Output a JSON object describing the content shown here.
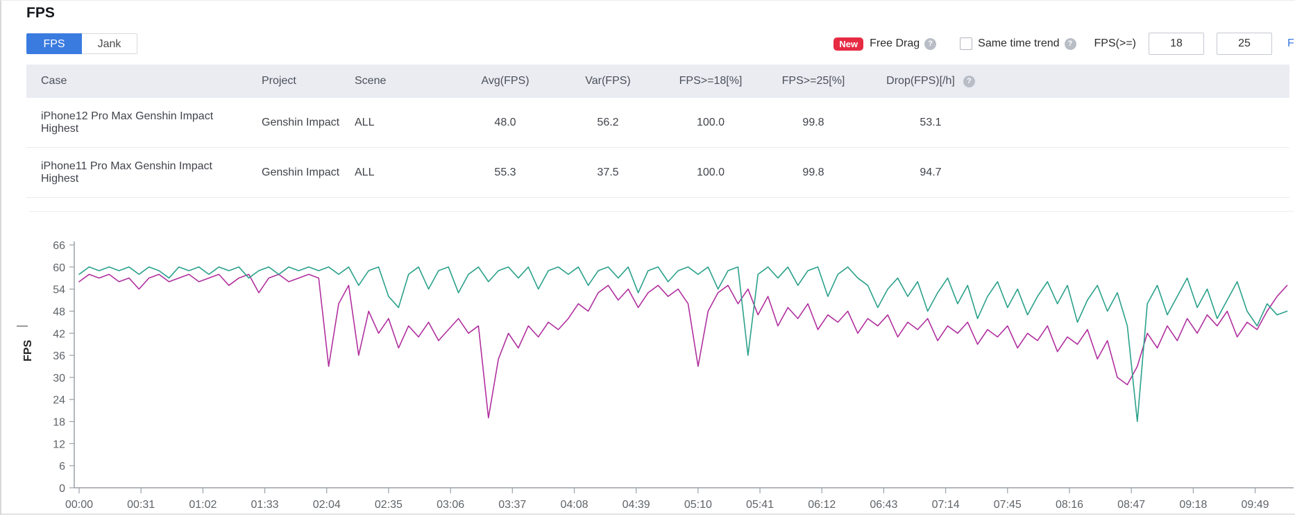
{
  "page": {
    "title": "FPS"
  },
  "tabs": [
    {
      "label": "FPS",
      "active": true
    },
    {
      "label": "Jank",
      "active": false
    }
  ],
  "controls": {
    "new_badge": "New",
    "free_drag_label": "Free Drag",
    "same_time_trend_label": "Same time trend",
    "same_time_trend_checked": false,
    "fps_threshold_label": "FPS(>=)",
    "fps_input_1": "18",
    "fps_input_2": "25",
    "cut_link_text": "F",
    "help_glyph": "?"
  },
  "table": {
    "columns": [
      "Case",
      "Project",
      "Scene",
      "Avg(FPS)",
      "Var(FPS)",
      "FPS>=18[%]",
      "FPS>=25[%]",
      "Drop(FPS)[/h]"
    ],
    "rows": [
      [
        "iPhone12 Pro Max Genshin Impact Highest",
        "Genshin Impact",
        "ALL",
        "48.0",
        "56.2",
        "100.0",
        "99.8",
        "53.1"
      ],
      [
        "iPhone11 Pro Max Genshin Impact Highest",
        "Genshin Impact",
        "ALL",
        "55.3",
        "37.5",
        "100.0",
        "99.8",
        "94.7"
      ]
    ]
  },
  "colors": {
    "accent_blue": "#3a7be0",
    "badge_red": "#e62b43",
    "header_bg": "#eaecf2",
    "series_iphone12": "#b02f9e",
    "series_iphone11": "#2aa08a"
  },
  "chart_data": {
    "type": "line",
    "title": "",
    "xlabel": "",
    "ylabel": "FPS",
    "ylim": [
      0,
      66
    ],
    "yticks": [
      0,
      6,
      12,
      18,
      24,
      30,
      36,
      42,
      48,
      54,
      60,
      66
    ],
    "xticklabels": [
      "00:00",
      "00:31",
      "01:02",
      "01:33",
      "02:04",
      "02:35",
      "03:06",
      "03:37",
      "04:08",
      "04:39",
      "05:10",
      "05:41",
      "06:12",
      "06:43",
      "07:14",
      "07:45",
      "08:16",
      "08:47",
      "09:18",
      "09:49"
    ],
    "x_interval_seconds": 31,
    "grid": false,
    "legend_position": "none",
    "series": [
      {
        "name": "iPhone12 Pro Max Genshin Impact Highest",
        "color": "#b02f9e",
        "points": [
          [
            0,
            56
          ],
          [
            5,
            58
          ],
          [
            10,
            57
          ],
          [
            15,
            58
          ],
          [
            20,
            56
          ],
          [
            25,
            57
          ],
          [
            30,
            54
          ],
          [
            35,
            57
          ],
          [
            40,
            58
          ],
          [
            45,
            56
          ],
          [
            50,
            57
          ],
          [
            55,
            58
          ],
          [
            60,
            56
          ],
          [
            65,
            57
          ],
          [
            70,
            58
          ],
          [
            75,
            55
          ],
          [
            80,
            57
          ],
          [
            85,
            58
          ],
          [
            90,
            53
          ],
          [
            95,
            57
          ],
          [
            100,
            58
          ],
          [
            105,
            56
          ],
          [
            110,
            57
          ],
          [
            115,
            58
          ],
          [
            120,
            57
          ],
          [
            125,
            33
          ],
          [
            130,
            50
          ],
          [
            135,
            55
          ],
          [
            140,
            36
          ],
          [
            145,
            48
          ],
          [
            150,
            42
          ],
          [
            155,
            46
          ],
          [
            160,
            38
          ],
          [
            165,
            44
          ],
          [
            170,
            41
          ],
          [
            175,
            45
          ],
          [
            180,
            40
          ],
          [
            185,
            43
          ],
          [
            190,
            46
          ],
          [
            195,
            42
          ],
          [
            200,
            44
          ],
          [
            205,
            19
          ],
          [
            210,
            35
          ],
          [
            215,
            42
          ],
          [
            220,
            38
          ],
          [
            225,
            44
          ],
          [
            230,
            41
          ],
          [
            235,
            45
          ],
          [
            240,
            43
          ],
          [
            245,
            46
          ],
          [
            250,
            50
          ],
          [
            255,
            48
          ],
          [
            260,
            53
          ],
          [
            265,
            55
          ],
          [
            270,
            51
          ],
          [
            275,
            54
          ],
          [
            280,
            49
          ],
          [
            285,
            53
          ],
          [
            290,
            55
          ],
          [
            295,
            52
          ],
          [
            300,
            54
          ],
          [
            305,
            50
          ],
          [
            310,
            33
          ],
          [
            315,
            48
          ],
          [
            320,
            53
          ],
          [
            325,
            55
          ],
          [
            330,
            50
          ],
          [
            335,
            54
          ],
          [
            340,
            47
          ],
          [
            345,
            52
          ],
          [
            350,
            44
          ],
          [
            355,
            49
          ],
          [
            360,
            46
          ],
          [
            365,
            50
          ],
          [
            370,
            43
          ],
          [
            375,
            47
          ],
          [
            380,
            45
          ],
          [
            385,
            48
          ],
          [
            390,
            42
          ],
          [
            395,
            46
          ],
          [
            400,
            44
          ],
          [
            405,
            47
          ],
          [
            410,
            41
          ],
          [
            415,
            45
          ],
          [
            420,
            43
          ],
          [
            425,
            46
          ],
          [
            430,
            40
          ],
          [
            435,
            44
          ],
          [
            440,
            42
          ],
          [
            445,
            45
          ],
          [
            450,
            39
          ],
          [
            455,
            43
          ],
          [
            460,
            41
          ],
          [
            465,
            44
          ],
          [
            470,
            38
          ],
          [
            475,
            42
          ],
          [
            480,
            40
          ],
          [
            485,
            44
          ],
          [
            490,
            37
          ],
          [
            495,
            41
          ],
          [
            500,
            39
          ],
          [
            505,
            43
          ],
          [
            510,
            35
          ],
          [
            515,
            40
          ],
          [
            520,
            30
          ],
          [
            525,
            28
          ],
          [
            530,
            33
          ],
          [
            535,
            42
          ],
          [
            540,
            38
          ],
          [
            545,
            44
          ],
          [
            550,
            40
          ],
          [
            555,
            46
          ],
          [
            560,
            42
          ],
          [
            565,
            47
          ],
          [
            570,
            44
          ],
          [
            575,
            48
          ],
          [
            580,
            41
          ],
          [
            585,
            45
          ],
          [
            590,
            43
          ],
          [
            595,
            48
          ],
          [
            600,
            52
          ],
          [
            605,
            55
          ]
        ]
      },
      {
        "name": "iPhone11 Pro Max Genshin Impact Highest",
        "color": "#2aa08a",
        "points": [
          [
            0,
            58
          ],
          [
            5,
            60
          ],
          [
            10,
            59
          ],
          [
            15,
            60
          ],
          [
            20,
            59
          ],
          [
            25,
            60
          ],
          [
            30,
            58
          ],
          [
            35,
            60
          ],
          [
            40,
            59
          ],
          [
            45,
            57
          ],
          [
            50,
            60
          ],
          [
            55,
            59
          ],
          [
            60,
            60
          ],
          [
            65,
            58
          ],
          [
            70,
            60
          ],
          [
            75,
            59
          ],
          [
            80,
            60
          ],
          [
            85,
            57
          ],
          [
            90,
            59
          ],
          [
            95,
            60
          ],
          [
            100,
            58
          ],
          [
            105,
            60
          ],
          [
            110,
            59
          ],
          [
            115,
            60
          ],
          [
            120,
            59
          ],
          [
            125,
            60
          ],
          [
            130,
            58
          ],
          [
            135,
            60
          ],
          [
            140,
            55
          ],
          [
            145,
            59
          ],
          [
            150,
            60
          ],
          [
            155,
            52
          ],
          [
            160,
            49
          ],
          [
            165,
            58
          ],
          [
            170,
            60
          ],
          [
            175,
            54
          ],
          [
            180,
            59
          ],
          [
            185,
            60
          ],
          [
            190,
            53
          ],
          [
            195,
            58
          ],
          [
            200,
            60
          ],
          [
            205,
            56
          ],
          [
            210,
            59
          ],
          [
            215,
            60
          ],
          [
            220,
            57
          ],
          [
            225,
            60
          ],
          [
            230,
            54
          ],
          [
            235,
            59
          ],
          [
            240,
            60
          ],
          [
            245,
            58
          ],
          [
            250,
            60
          ],
          [
            255,
            55
          ],
          [
            260,
            59
          ],
          [
            265,
            60
          ],
          [
            270,
            57
          ],
          [
            275,
            60
          ],
          [
            280,
            53
          ],
          [
            285,
            59
          ],
          [
            290,
            60
          ],
          [
            295,
            56
          ],
          [
            300,
            59
          ],
          [
            305,
            60
          ],
          [
            310,
            58
          ],
          [
            315,
            60
          ],
          [
            320,
            54
          ],
          [
            325,
            59
          ],
          [
            330,
            60
          ],
          [
            335,
            36
          ],
          [
            340,
            58
          ],
          [
            345,
            60
          ],
          [
            350,
            57
          ],
          [
            355,
            60
          ],
          [
            360,
            55
          ],
          [
            365,
            59
          ],
          [
            370,
            60
          ],
          [
            375,
            52
          ],
          [
            380,
            58
          ],
          [
            385,
            60
          ],
          [
            390,
            57
          ],
          [
            395,
            55
          ],
          [
            400,
            49
          ],
          [
            405,
            54
          ],
          [
            410,
            57
          ],
          [
            415,
            52
          ],
          [
            420,
            56
          ],
          [
            425,
            48
          ],
          [
            430,
            53
          ],
          [
            435,
            57
          ],
          [
            440,
            50
          ],
          [
            445,
            55
          ],
          [
            450,
            46
          ],
          [
            455,
            52
          ],
          [
            460,
            56
          ],
          [
            465,
            49
          ],
          [
            470,
            54
          ],
          [
            475,
            47
          ],
          [
            480,
            52
          ],
          [
            485,
            56
          ],
          [
            490,
            50
          ],
          [
            495,
            55
          ],
          [
            500,
            45
          ],
          [
            505,
            51
          ],
          [
            510,
            55
          ],
          [
            515,
            48
          ],
          [
            520,
            53
          ],
          [
            525,
            44
          ],
          [
            530,
            18
          ],
          [
            535,
            50
          ],
          [
            540,
            55
          ],
          [
            545,
            47
          ],
          [
            550,
            52
          ],
          [
            555,
            57
          ],
          [
            560,
            49
          ],
          [
            565,
            54
          ],
          [
            570,
            46
          ],
          [
            575,
            51
          ],
          [
            580,
            56
          ],
          [
            585,
            48
          ],
          [
            590,
            44
          ],
          [
            595,
            50
          ],
          [
            600,
            47
          ],
          [
            605,
            48
          ]
        ]
      }
    ]
  }
}
